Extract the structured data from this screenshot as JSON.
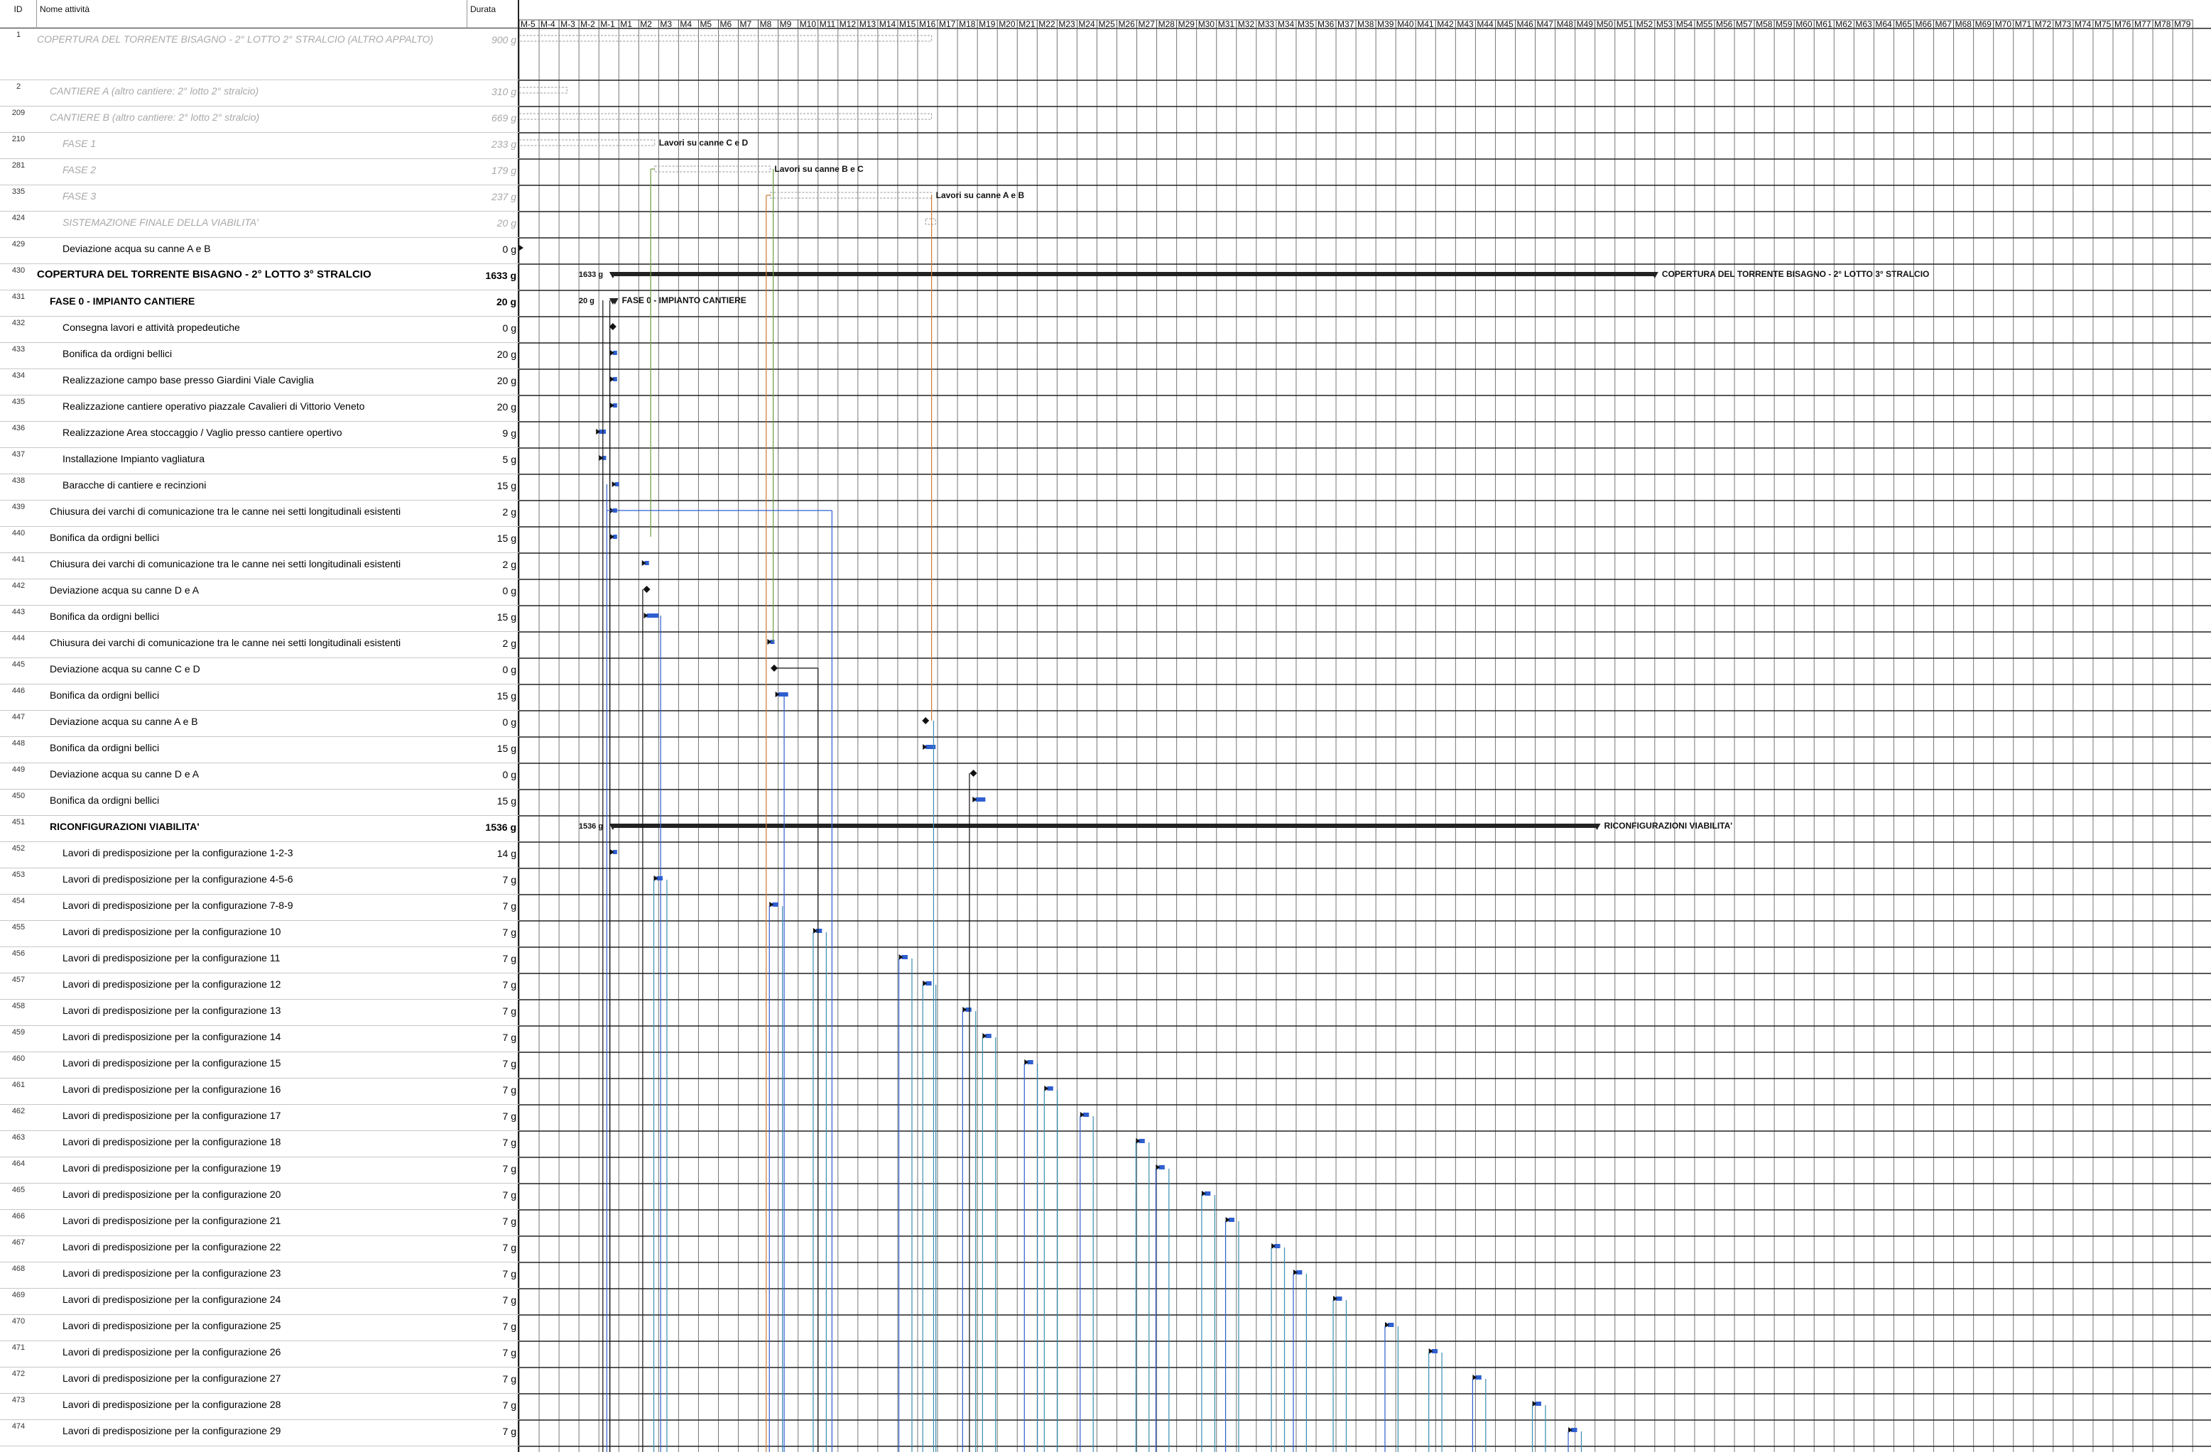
{
  "columns": {
    "id": "ID",
    "name": "Nome attività",
    "duration": "Durata"
  },
  "timeline": {
    "months": [
      "M-5",
      "M-4",
      "M-3",
      "M-2",
      "M-1",
      "M1",
      "M2",
      "M3",
      "M4",
      "M5",
      "M6",
      "M7",
      "M8",
      "M9",
      "M10",
      "M11",
      "M12",
      "M13",
      "M14",
      "M15",
      "M16",
      "M17",
      "M18",
      "M19",
      "M20",
      "M21",
      "M22",
      "M23",
      "M24",
      "M25",
      "M26",
      "M27",
      "M28",
      "M29",
      "M30",
      "M31",
      "M32",
      "M33",
      "M34",
      "M35",
      "M36",
      "M37",
      "M38",
      "M39",
      "M40",
      "M41",
      "M42",
      "M43",
      "M44",
      "M45",
      "M46",
      "M47",
      "M48",
      "M49",
      "M50",
      "M51",
      "M52",
      "M53",
      "M54",
      "M55",
      "M56",
      "M57",
      "M58",
      "M59",
      "M60",
      "M61",
      "M62",
      "M63",
      "M64",
      "M65",
      "M66",
      "M67",
      "M68",
      "M69",
      "M70",
      "M71",
      "M72",
      "M73",
      "M74",
      "M75",
      "M76",
      "M77",
      "M78",
      "M79"
    ]
  },
  "colors": {
    "blue": "#2f5fd0",
    "teal": "#3a8fb0",
    "green": "#6f9a3a",
    "orange": "#d07a30",
    "summary": "#222222",
    "grey": "#9a9a9a",
    "row_line": "#222222"
  },
  "rows": [
    {
      "id": "1",
      "name": "COPERTURA DEL TORRENTE BISAGNO -  2° LOTTO 2° STRALCIO (ALTRO APPALTO)",
      "duration": "900 g",
      "style": "grey",
      "indent": 0,
      "tall": true,
      "bar": {
        "kind": "external",
        "start": -5.0,
        "end": 16.7
      }
    },
    {
      "id": "2",
      "name": "CANTIERE A (altro cantiere: 2° lotto 2° stralcio)",
      "duration": "310 g",
      "style": "grey",
      "indent": 1,
      "bar": {
        "kind": "external",
        "start": -5.0,
        "end": -2.6
      }
    },
    {
      "id": "209",
      "name": "CANTIERE B  (altro cantiere: 2° lotto 2° stralcio)",
      "duration": "669 g",
      "style": "grey",
      "indent": 1,
      "bar": {
        "kind": "external",
        "start": -5.0,
        "end": 16.7
      }
    },
    {
      "id": "210",
      "name": "FASE 1",
      "duration": "233 g",
      "style": "grey",
      "indent": 2,
      "bar": {
        "kind": "external",
        "start": -5.0,
        "end": 2.8,
        "label": "Lavori su canne C e D"
      }
    },
    {
      "id": "281",
      "name": "FASE 2",
      "duration": "179 g",
      "style": "grey",
      "indent": 2,
      "bar": {
        "kind": "external",
        "start": 2.8,
        "end": 8.6,
        "label": "Lavori su canne B e C"
      }
    },
    {
      "id": "335",
      "name": "FASE 3",
      "duration": "237 g",
      "style": "grey",
      "indent": 2,
      "bar": {
        "kind": "external",
        "start": 8.6,
        "end": 16.7,
        "label": "Lavori su canne A e B"
      }
    },
    {
      "id": "424",
      "name": "SISTEMAZIONE FINALE DELLA VIABILITA'",
      "duration": "20 g",
      "style": "grey",
      "indent": 2,
      "bar": {
        "kind": "external",
        "start": 16.4,
        "end": 16.9
      }
    },
    {
      "id": "429",
      "name": "Deviazione acqua su canne A e B",
      "duration": "0 g",
      "style": "normal",
      "indent": 2,
      "bar": {
        "kind": "arrow",
        "start": -5.0
      }
    },
    {
      "id": "430",
      "name": "COPERTURA DEL TORRENTE BISAGNO -  2° LOTTO 3° STRALCIO",
      "duration": "1633 g",
      "style": "bold",
      "indent": 0,
      "bar": {
        "kind": "summary",
        "start": -0.3,
        "end": 53.0,
        "label": "COPERTURA DEL TORRENTE BISAGNO -  2° LOTTO 3° STRALCIO",
        "dur_label": "1633 g"
      }
    },
    {
      "id": "431",
      "name": "FASE 0 - IMPIANTO CANTIERE",
      "duration": "20 g",
      "style": "bold",
      "indent": 1,
      "bar": {
        "kind": "summary",
        "start": -0.3,
        "end": 0.8,
        "label": "FASE 0 - IMPIANTO CANTIERE",
        "dur_label": "20 g"
      }
    },
    {
      "id": "432",
      "name": "Consegna lavori e attività propedeutiche",
      "duration": "0 g",
      "style": "normal",
      "indent": 2,
      "bar": {
        "kind": "milestone",
        "start": -0.3
      }
    },
    {
      "id": "433",
      "name": "Bonifica da ordigni bellici",
      "duration": "20 g",
      "style": "normal",
      "indent": 2,
      "bar": {
        "kind": "task",
        "start": -0.3,
        "end": 0.4
      }
    },
    {
      "id": "434",
      "name": "Realizzazione campo base presso Giardini Viale Caviglia",
      "duration": "20 g",
      "style": "normal",
      "indent": 2,
      "bar": {
        "kind": "task",
        "start": -0.3,
        "end": 0.4
      }
    },
    {
      "id": "435",
      "name": "Realizzazione cantiere operativo piazzale Cavalieri di Vittorio Veneto",
      "duration": "20 g",
      "style": "normal",
      "indent": 2,
      "bar": {
        "kind": "task",
        "start": -0.3,
        "end": 0.4
      }
    },
    {
      "id": "436",
      "name": "Realizzazione Area stoccaggio / Vaglio presso cantiere opertivo",
      "duration": "9 g",
      "style": "normal",
      "indent": 2,
      "bar": {
        "kind": "task",
        "start": 0.0,
        "end": 0.35
      }
    },
    {
      "id": "437",
      "name": "Installazione Impianto vagliatura",
      "duration": "5 g",
      "style": "normal",
      "indent": 2,
      "bar": {
        "kind": "task",
        "start": 0.15,
        "end": 0.35
      }
    },
    {
      "id": "438",
      "name": "Baracche di cantiere e recinzioni",
      "duration": "15 g",
      "style": "normal",
      "indent": 2,
      "bar": {
        "kind": "task",
        "start": -0.2,
        "end": 0.35
      }
    },
    {
      "id": "439",
      "name": "Chiusura dei varchi di comunicazione tra le canne nei setti longitudinali esistenti",
      "duration": "2 g",
      "style": "normal",
      "indent": 1,
      "bar": {
        "kind": "task",
        "start": -0.3,
        "end": -0.2
      }
    },
    {
      "id": "440",
      "name": "Bonifica da ordigni bellici",
      "duration": "15 g",
      "style": "normal",
      "indent": 1,
      "bar": {
        "kind": "task",
        "start": -0.3,
        "end": 0.3
      }
    },
    {
      "id": "441",
      "name": "Chiusura dei varchi di comunicazione tra le canne nei setti longitudinali esistenti",
      "duration": "2 g",
      "style": "normal",
      "indent": 1,
      "bar": {
        "kind": "task",
        "start": 2.3,
        "end": 2.4
      }
    },
    {
      "id": "442",
      "name": "Deviazione acqua su canne D e A",
      "duration": "0 g",
      "style": "normal",
      "indent": 1,
      "bar": {
        "kind": "milestone",
        "start": 2.4
      }
    },
    {
      "id": "443",
      "name": "Bonifica da ordigni bellici",
      "duration": "15 g",
      "style": "normal",
      "indent": 1,
      "bar": {
        "kind": "task",
        "start": 2.4,
        "end": 3.0
      }
    },
    {
      "id": "444",
      "name": "Chiusura dei varchi di comunicazione tra le canne nei setti longitudinali esistenti",
      "duration": "2 g",
      "style": "normal",
      "indent": 1,
      "bar": {
        "kind": "task",
        "start": 8.6,
        "end": 8.7
      }
    },
    {
      "id": "445",
      "name": "Deviazione acqua su canne C e D",
      "duration": "0 g",
      "style": "normal",
      "indent": 1,
      "bar": {
        "kind": "milestone",
        "start": 8.8
      }
    },
    {
      "id": "446",
      "name": "Bonifica da ordigni bellici",
      "duration": "15 g",
      "style": "normal",
      "indent": 1,
      "bar": {
        "kind": "task",
        "start": 9.0,
        "end": 9.5
      }
    },
    {
      "id": "447",
      "name": "Deviazione acqua su canne A e B",
      "duration": "0 g",
      "style": "normal",
      "indent": 1,
      "bar": {
        "kind": "milestone",
        "start": 16.4
      }
    },
    {
      "id": "448",
      "name": "Bonifica da ordigni bellici",
      "duration": "15 g",
      "style": "normal",
      "indent": 1,
      "bar": {
        "kind": "task",
        "start": 16.4,
        "end": 16.9
      }
    },
    {
      "id": "449",
      "name": "Deviazione acqua su canne D e A",
      "duration": "0 g",
      "style": "normal",
      "indent": 1,
      "bar": {
        "kind": "milestone",
        "start": 18.8
      }
    },
    {
      "id": "450",
      "name": "Bonifica da ordigni bellici",
      "duration": "15 g",
      "style": "normal",
      "indent": 1,
      "bar": {
        "kind": "task",
        "start": 18.9,
        "end": 19.4
      }
    },
    {
      "id": "451",
      "name": "RICONFIGURAZIONI VIABILITA'",
      "duration": "1536 g",
      "style": "bold",
      "indent": 1,
      "bar": {
        "kind": "summary",
        "start": -0.3,
        "end": 50.1,
        "label": "RICONFIGURAZIONI VIABILITA'",
        "dur_label": "1536 g"
      }
    },
    {
      "id": "452",
      "name": "Lavori di predisposizione per la configurazione 1-2-3",
      "duration": "14 g",
      "style": "normal",
      "indent": 2,
      "bar": {
        "kind": "task",
        "start": -0.3,
        "end": 0.2
      }
    },
    {
      "id": "453",
      "name": "Lavori di predisposizione per la configurazione 4-5-6",
      "duration": "7 g",
      "style": "normal",
      "indent": 2,
      "bar": {
        "kind": "task",
        "start": 2.9,
        "end": 3.2
      }
    },
    {
      "id": "454",
      "name": "Lavori di predisposizione per la configurazione 7-8-9",
      "duration": "7 g",
      "style": "normal",
      "indent": 2,
      "bar": {
        "kind": "task",
        "start": 8.7,
        "end": 9.0
      }
    },
    {
      "id": "455",
      "name": "Lavori di predisposizione per la configurazione 10",
      "duration": "7 g",
      "style": "normal",
      "indent": 2,
      "bar": {
        "kind": "task",
        "start": 10.9,
        "end": 11.2
      }
    },
    {
      "id": "456",
      "name": "Lavori di predisposizione per la configurazione 11",
      "duration": "7 g",
      "style": "normal",
      "indent": 2,
      "bar": {
        "kind": "task",
        "start": 15.2,
        "end": 15.5
      }
    },
    {
      "id": "457",
      "name": "Lavori di predisposizione per la configurazione 12",
      "duration": "7 g",
      "style": "normal",
      "indent": 2,
      "bar": {
        "kind": "task",
        "start": 16.4,
        "end": 16.7
      }
    },
    {
      "id": "458",
      "name": "Lavori di predisposizione per la configurazione 13",
      "duration": "7 g",
      "style": "normal",
      "indent": 2,
      "bar": {
        "kind": "task",
        "start": 18.4,
        "end": 18.7
      }
    },
    {
      "id": "459",
      "name": "Lavori di predisposizione per la configurazione 14",
      "duration": "7 g",
      "style": "normal",
      "indent": 2,
      "bar": {
        "kind": "task",
        "start": 19.4,
        "end": 19.7
      }
    },
    {
      "id": "460",
      "name": "Lavori di predisposizione per la configurazione 15",
      "duration": "7 g",
      "style": "normal",
      "indent": 2,
      "bar": {
        "kind": "task",
        "start": 21.5,
        "end": 21.8
      }
    },
    {
      "id": "461",
      "name": "Lavori di predisposizione per la configurazione 16",
      "duration": "7 g",
      "style": "normal",
      "indent": 2,
      "bar": {
        "kind": "task",
        "start": 22.5,
        "end": 22.8
      }
    },
    {
      "id": "462",
      "name": "Lavori di predisposizione per la configurazione 17",
      "duration": "7 g",
      "style": "normal",
      "indent": 2,
      "bar": {
        "kind": "task",
        "start": 24.3,
        "end": 24.6
      }
    },
    {
      "id": "463",
      "name": "Lavori di predisposizione per la configurazione 18",
      "duration": "7 g",
      "style": "normal",
      "indent": 2,
      "bar": {
        "kind": "task",
        "start": 27.1,
        "end": 27.4
      }
    },
    {
      "id": "464",
      "name": "Lavori di predisposizione per la configurazione 19",
      "duration": "7 g",
      "style": "normal",
      "indent": 2,
      "bar": {
        "kind": "task",
        "start": 28.1,
        "end": 28.4
      }
    },
    {
      "id": "465",
      "name": "Lavori di predisposizione per la configurazione 20",
      "duration": "7 g",
      "style": "normal",
      "indent": 2,
      "bar": {
        "kind": "task",
        "start": 30.4,
        "end": 30.7
      }
    },
    {
      "id": "466",
      "name": "Lavori di predisposizione per la configurazione 21",
      "duration": "7 g",
      "style": "normal",
      "indent": 2,
      "bar": {
        "kind": "task",
        "start": 31.6,
        "end": 31.9
      }
    },
    {
      "id": "467",
      "name": "Lavori di predisposizione per la configurazione 22",
      "duration": "7 g",
      "style": "normal",
      "indent": 2,
      "bar": {
        "kind": "task",
        "start": 33.9,
        "end": 34.2
      }
    },
    {
      "id": "468",
      "name": "Lavori di predisposizione per la configurazione 23",
      "duration": "7 g",
      "style": "normal",
      "indent": 2,
      "bar": {
        "kind": "task",
        "start": 35.0,
        "end": 35.3
      }
    },
    {
      "id": "469",
      "name": "Lavori di predisposizione per la configurazione 24",
      "duration": "7 g",
      "style": "normal",
      "indent": 2,
      "bar": {
        "kind": "task",
        "start": 37.0,
        "end": 37.3
      }
    },
    {
      "id": "470",
      "name": "Lavori di predisposizione per la configurazione 25",
      "duration": "7 g",
      "style": "normal",
      "indent": 2,
      "bar": {
        "kind": "task",
        "start": 39.6,
        "end": 39.9
      }
    },
    {
      "id": "471",
      "name": "Lavori di predisposizione per la configurazione 26",
      "duration": "7 g",
      "style": "normal",
      "indent": 2,
      "bar": {
        "kind": "task",
        "start": 41.8,
        "end": 42.1
      }
    },
    {
      "id": "472",
      "name": "Lavori di predisposizione per la configurazione 27",
      "duration": "7 g",
      "style": "normal",
      "indent": 2,
      "bar": {
        "kind": "task",
        "start": 44.0,
        "end": 44.3
      }
    },
    {
      "id": "473",
      "name": "Lavori di predisposizione per la configurazione 28",
      "duration": "7 g",
      "style": "normal",
      "indent": 2,
      "bar": {
        "kind": "task",
        "start": 47.0,
        "end": 47.3
      }
    },
    {
      "id": "474",
      "name": "Lavori di predisposizione per la configurazione 29",
      "duration": "7 g",
      "style": "normal",
      "indent": 2,
      "bar": {
        "kind": "task",
        "start": 48.8,
        "end": 49.1
      }
    }
  ]
}
